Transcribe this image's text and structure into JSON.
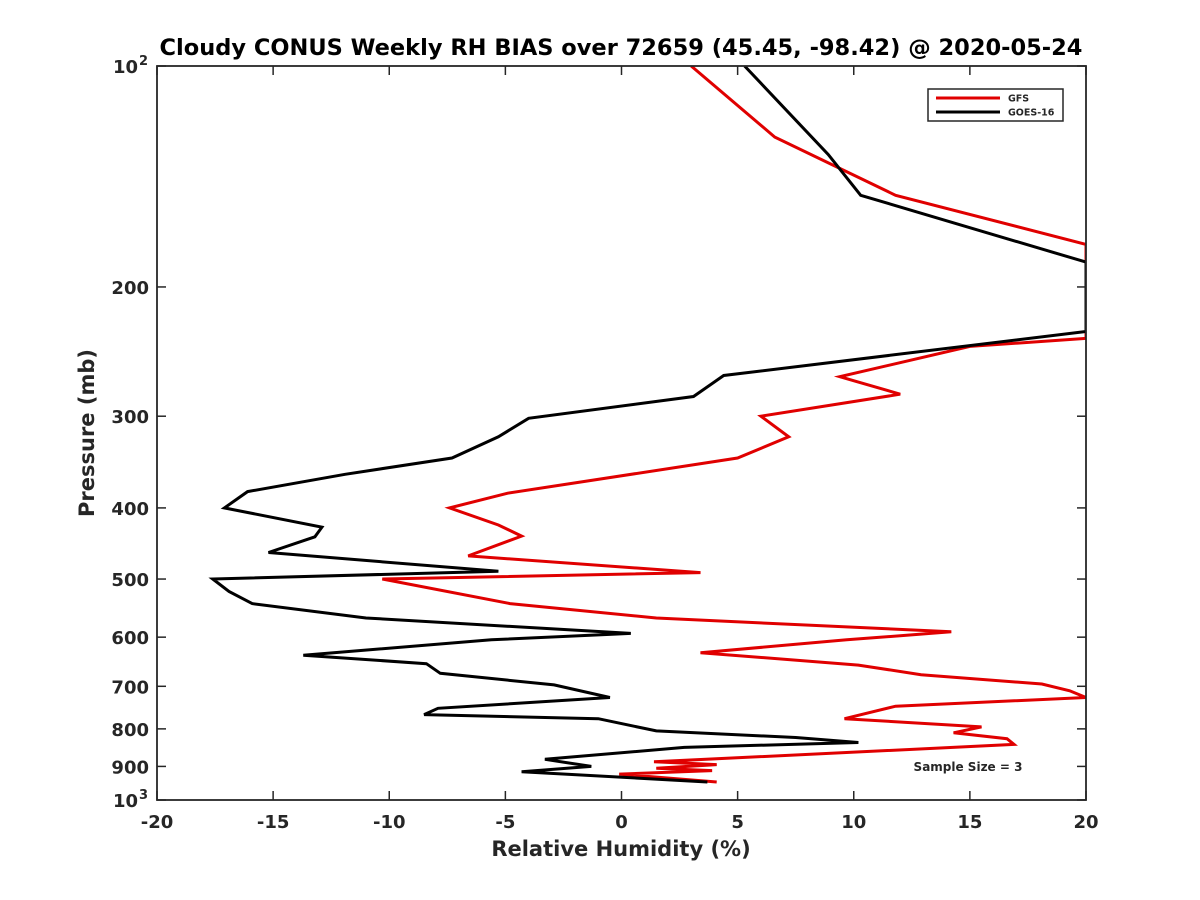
{
  "chart_data": {
    "type": "line",
    "title": "Cloudy CONUS Weekly RH BIAS over 72659 (45.45, -98.42) @ 2020-05-24",
    "xlabel": "Relative Humidity (%)",
    "ylabel": "Pressure (mb)",
    "xlim": [
      -20,
      20
    ],
    "ylim": [
      100,
      1000
    ],
    "y_scale": "log",
    "y_reversed": true,
    "x_ticks": [
      -20,
      -15,
      -10,
      -5,
      0,
      5,
      10,
      15,
      20
    ],
    "x_tick_labels": [
      "-20",
      "-15",
      "-10",
      "-5",
      "0",
      "5",
      "10",
      "15",
      "20"
    ],
    "y_ticks": [
      100,
      200,
      300,
      400,
      500,
      600,
      700,
      800,
      900,
      1000
    ],
    "y_tick_labels": [
      {
        "base": "10",
        "exp": "2"
      },
      {
        "base": "200",
        "exp": ""
      },
      {
        "base": "300",
        "exp": ""
      },
      {
        "base": "400",
        "exp": ""
      },
      {
        "base": "500",
        "exp": ""
      },
      {
        "base": "600",
        "exp": ""
      },
      {
        "base": "700",
        "exp": ""
      },
      {
        "base": "800",
        "exp": ""
      },
      {
        "base": "900",
        "exp": ""
      },
      {
        "base": "10",
        "exp": "3"
      }
    ],
    "legend_position": "top-right",
    "grid": false,
    "annotation": "Sample Size = 3",
    "series": [
      {
        "name": "GFS",
        "color": "#e00000",
        "points": [
          {
            "x": 3.0,
            "y": 100
          },
          {
            "x": 6.6,
            "y": 125
          },
          {
            "x": 11.8,
            "y": 150
          },
          {
            "x": 20.0,
            "y": 175
          },
          {
            "x": 20.0,
            "y": 235
          },
          {
            "x": 15.0,
            "y": 241
          },
          {
            "x": 9.4,
            "y": 265
          },
          {
            "x": 12.0,
            "y": 280
          },
          {
            "x": 6.0,
            "y": 300
          },
          {
            "x": 7.2,
            "y": 320
          },
          {
            "x": 5.0,
            "y": 342
          },
          {
            "x": -4.9,
            "y": 382
          },
          {
            "x": -7.4,
            "y": 400
          },
          {
            "x": -5.3,
            "y": 422
          },
          {
            "x": -4.3,
            "y": 437
          },
          {
            "x": -6.6,
            "y": 465
          },
          {
            "x": 3.4,
            "y": 490
          },
          {
            "x": -10.3,
            "y": 500
          },
          {
            "x": -4.8,
            "y": 540
          },
          {
            "x": 1.5,
            "y": 565
          },
          {
            "x": 14.2,
            "y": 590
          },
          {
            "x": 9.7,
            "y": 605
          },
          {
            "x": 3.4,
            "y": 630
          },
          {
            "x": 10.2,
            "y": 655
          },
          {
            "x": 12.9,
            "y": 675
          },
          {
            "x": 18.1,
            "y": 695
          },
          {
            "x": 19.3,
            "y": 710
          },
          {
            "x": 20.0,
            "y": 725
          },
          {
            "x": 11.8,
            "y": 745
          },
          {
            "x": 9.6,
            "y": 775
          },
          {
            "x": 15.5,
            "y": 795
          },
          {
            "x": 14.3,
            "y": 810
          },
          {
            "x": 16.6,
            "y": 825
          },
          {
            "x": 16.9,
            "y": 840
          },
          {
            "x": 1.4,
            "y": 887
          },
          {
            "x": 4.1,
            "y": 895
          },
          {
            "x": 1.5,
            "y": 905
          },
          {
            "x": 3.9,
            "y": 912
          },
          {
            "x": -0.1,
            "y": 922
          },
          {
            "x": 4.1,
            "y": 945
          }
        ]
      },
      {
        "name": "GOES-16",
        "color": "#000000",
        "points": [
          {
            "x": 5.3,
            "y": 100
          },
          {
            "x": 8.9,
            "y": 132
          },
          {
            "x": 10.3,
            "y": 150
          },
          {
            "x": 20.0,
            "y": 185
          },
          {
            "x": 20.0,
            "y": 230
          },
          {
            "x": 4.4,
            "y": 264
          },
          {
            "x": 3.1,
            "y": 282
          },
          {
            "x": -4.0,
            "y": 302
          },
          {
            "x": -5.3,
            "y": 320
          },
          {
            "x": -7.3,
            "y": 342
          },
          {
            "x": -11.9,
            "y": 360
          },
          {
            "x": -16.1,
            "y": 380
          },
          {
            "x": -17.1,
            "y": 400
          },
          {
            "x": -12.9,
            "y": 425
          },
          {
            "x": -13.2,
            "y": 438
          },
          {
            "x": -15.2,
            "y": 460
          },
          {
            "x": -5.3,
            "y": 488
          },
          {
            "x": -17.6,
            "y": 500
          },
          {
            "x": -16.9,
            "y": 520
          },
          {
            "x": -15.9,
            "y": 540
          },
          {
            "x": -11.0,
            "y": 565
          },
          {
            "x": 0.4,
            "y": 593
          },
          {
            "x": -5.6,
            "y": 605
          },
          {
            "x": -13.7,
            "y": 635
          },
          {
            "x": -8.4,
            "y": 652
          },
          {
            "x": -7.8,
            "y": 672
          },
          {
            "x": -2.9,
            "y": 697
          },
          {
            "x": -0.5,
            "y": 725
          },
          {
            "x": -7.9,
            "y": 750
          },
          {
            "x": -8.5,
            "y": 765
          },
          {
            "x": -1.0,
            "y": 775
          },
          {
            "x": 1.5,
            "y": 805
          },
          {
            "x": 7.5,
            "y": 822
          },
          {
            "x": 10.2,
            "y": 835
          },
          {
            "x": 2.7,
            "y": 848
          },
          {
            "x": -3.3,
            "y": 880
          },
          {
            "x": -1.3,
            "y": 900
          },
          {
            "x": -4.3,
            "y": 915
          },
          {
            "x": 3.7,
            "y": 945
          }
        ]
      }
    ]
  }
}
